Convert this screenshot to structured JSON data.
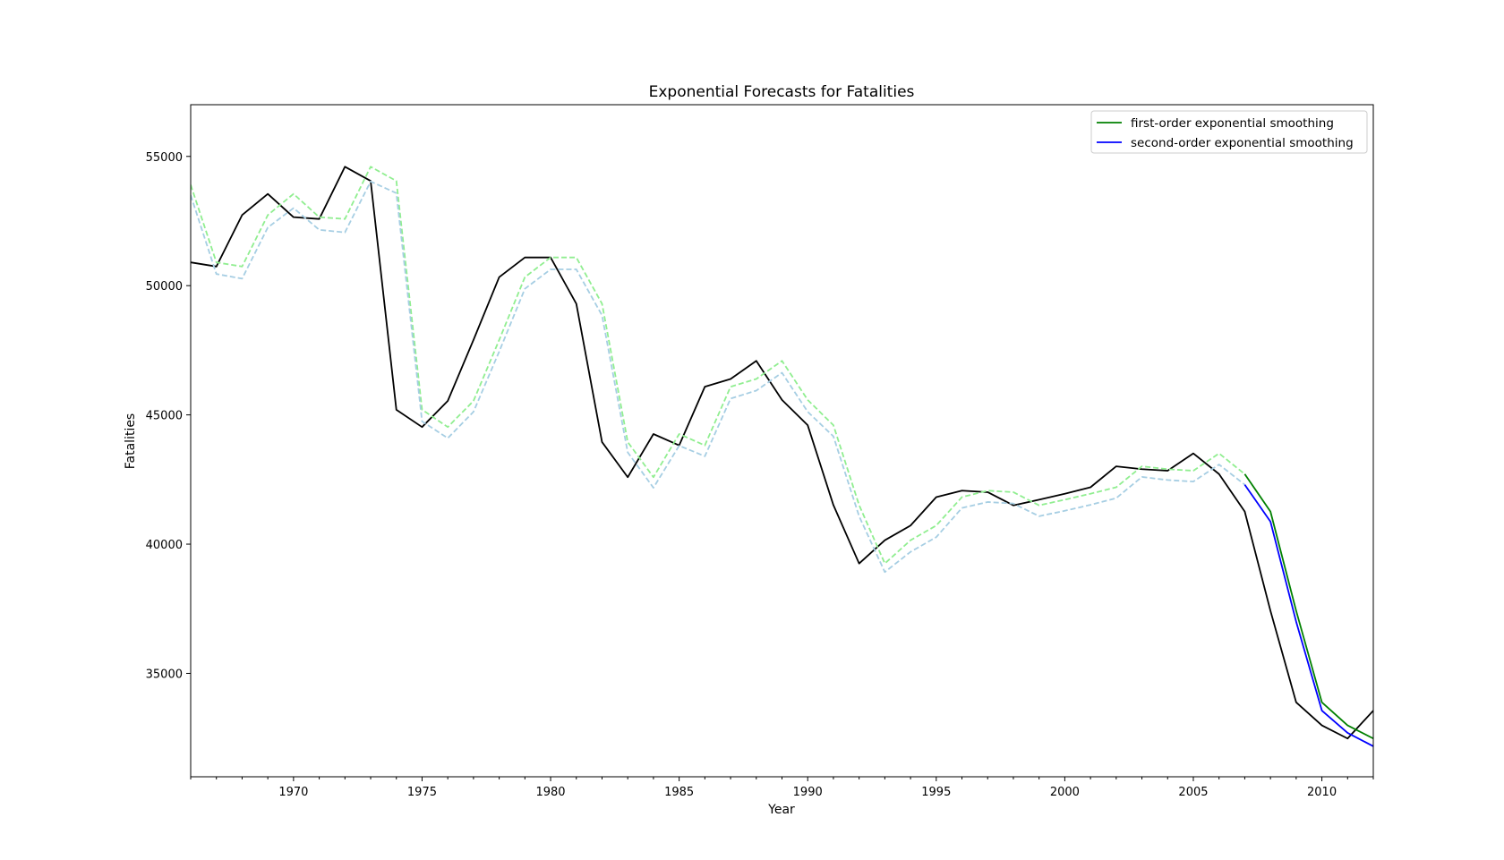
{
  "chart_data": {
    "type": "line",
    "title": "Exponential Forecasts for Fatalities",
    "xlabel": "Year",
    "ylabel": "Fatalities",
    "xlim": [
      1966,
      2012
    ],
    "ylim": [
      31000,
      57000
    ],
    "x_ticks": [
      1970,
      1975,
      1980,
      1985,
      1990,
      1995,
      2000,
      2005,
      2010
    ],
    "y_ticks": [
      35000,
      40000,
      45000,
      50000,
      55000
    ],
    "grid": false,
    "legend_position": "top-right",
    "legend": [
      {
        "label": "first-order exponential smoothing",
        "color": "#008000"
      },
      {
        "label": "second-order exponential smoothing",
        "color": "#0000ff"
      }
    ],
    "series": [
      {
        "color": "#000000",
        "style": "solid",
        "x": [
          1966,
          1967,
          1968,
          1969,
          1970,
          1971,
          1972,
          1973,
          1974,
          1975,
          1976,
          1977,
          1978,
          1979,
          1980,
          1981,
          1982,
          1983,
          1984,
          1985,
          1986,
          1987,
          1988,
          1989,
          1990,
          1991,
          1992,
          1993,
          1994,
          1995,
          1996,
          1997,
          1998,
          1999,
          2000,
          2001,
          2002,
          2003,
          2004,
          2005,
          2006,
          2007,
          2008,
          2009,
          2010,
          2011,
          2012
        ],
        "y": [
          50900,
          50740,
          52730,
          53550,
          52650,
          52580,
          54600,
          54050,
          45200,
          44530,
          45540,
          47900,
          50330,
          51090,
          51090,
          49300,
          43950,
          42590,
          44260,
          43820,
          46090,
          46390,
          47090,
          45580,
          44600,
          41510,
          39250,
          40150,
          40720,
          41820,
          42070,
          42010,
          41500,
          41720,
          41950,
          42200,
          43010,
          42900,
          42840,
          43510,
          42710,
          41260,
          37420,
          33880,
          32990,
          32480,
          33560
        ]
      },
      {
        "color": "#90ee90",
        "style": "dashed",
        "x": [
          1966,
          1967,
          1968,
          1969,
          1970,
          1971,
          1972,
          1973,
          1974,
          1975,
          1976,
          1977,
          1978,
          1979,
          1980,
          1981,
          1982,
          1983,
          1984,
          1985,
          1986,
          1987,
          1988,
          1989,
          1990,
          1991,
          1992,
          1993,
          1994,
          1995,
          1996,
          1997,
          1998,
          1999,
          2000,
          2001,
          2002,
          2003,
          2004,
          2005,
          2006,
          2007
        ],
        "y": [
          53900,
          50900,
          50740,
          52730,
          53550,
          52650,
          52580,
          54600,
          54050,
          45200,
          44530,
          45540,
          47900,
          50330,
          51090,
          51090,
          49300,
          43950,
          42590,
          44260,
          43820,
          46090,
          46390,
          47090,
          45580,
          44600,
          41510,
          39250,
          40150,
          40720,
          41820,
          42070,
          42010,
          41500,
          41720,
          41950,
          42200,
          43010,
          42900,
          42840,
          43510,
          42710
        ]
      },
      {
        "color": "#a6cee3",
        "style": "dashed",
        "x": [
          1966,
          1967,
          1968,
          1969,
          1970,
          1971,
          1972,
          1973,
          1974,
          1975,
          1976,
          1977,
          1978,
          1979,
          1980,
          1981,
          1982,
          1983,
          1984,
          1985,
          1986,
          1987,
          1988,
          1989,
          1990,
          1991,
          1992,
          1993,
          1994,
          1995,
          1996,
          1997,
          1998,
          1999,
          2000,
          2001,
          2002,
          2003,
          2004,
          2005,
          2006,
          2007
        ],
        "y": [
          53500,
          50450,
          50270,
          52250,
          53000,
          52160,
          52060,
          54030,
          53580,
          44750,
          44100,
          45120,
          47450,
          49880,
          50630,
          50630,
          48850,
          43550,
          42180,
          43810,
          43400,
          45630,
          45940,
          46630,
          45120,
          44170,
          41080,
          38920,
          39700,
          40270,
          41400,
          41630,
          41570,
          41080,
          41290,
          41520,
          41780,
          42600,
          42480,
          42420,
          43080,
          42300
        ]
      },
      {
        "name": "first-order exponential smoothing",
        "color": "#008000",
        "style": "solid",
        "x": [
          2007,
          2008,
          2009,
          2010,
          2011,
          2012
        ],
        "y": [
          42710,
          41260,
          37420,
          33880,
          32990,
          32480
        ]
      },
      {
        "name": "second-order exponential smoothing",
        "color": "#0000ff",
        "style": "solid",
        "x": [
          2007,
          2008,
          2009,
          2010,
          2011,
          2012
        ],
        "y": [
          42300,
          40870,
          37000,
          33560,
          32700,
          32180
        ]
      }
    ]
  }
}
